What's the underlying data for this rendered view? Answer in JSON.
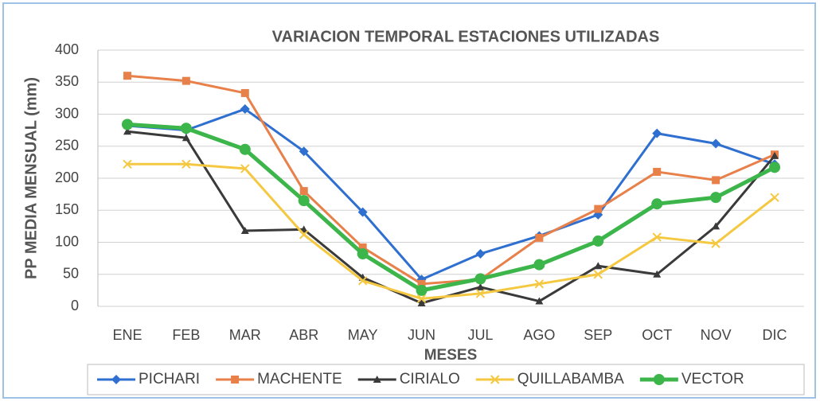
{
  "chart_data": {
    "type": "line",
    "title": "VARIACION TEMPORAL ESTACIONES UTILIZADAS",
    "y_label": "PP MEDIA MENSUAL (mm)",
    "x_label": "MESES",
    "categories": [
      "ENE",
      "FEB",
      "MAR",
      "ABR",
      "MAY",
      "JUN",
      "JUL",
      "AGO",
      "SEP",
      "OCT",
      "NOV",
      "DIC"
    ],
    "series": [
      {
        "name": "PICHARI",
        "color": "#2e6fd0",
        "marker": "diamond",
        "values": [
          282,
          275,
          308,
          242,
          147,
          42,
          82,
          110,
          143,
          270,
          254,
          222
        ]
      },
      {
        "name": "MACHENTE",
        "color": "#e8804a",
        "marker": "square",
        "values": [
          360,
          352,
          333,
          180,
          92,
          35,
          42,
          107,
          152,
          210,
          197,
          237
        ]
      },
      {
        "name": "CIRIALO",
        "color": "#3a3a3a",
        "marker": "triangle",
        "values": [
          273,
          263,
          118,
          120,
          45,
          5,
          30,
          8,
          63,
          50,
          125,
          235
        ]
      },
      {
        "name": "QUILLABAMBA",
        "color": "#f5c842",
        "marker": "x",
        "values": [
          222,
          222,
          215,
          112,
          40,
          12,
          20,
          35,
          50,
          108,
          98,
          170
        ]
      },
      {
        "name": "VECTOR",
        "color": "#3cb54a",
        "marker": "circle",
        "values": [
          284,
          278,
          245,
          165,
          82,
          25,
          43,
          65,
          102,
          160,
          170,
          217
        ]
      }
    ],
    "ylim": [
      0,
      400
    ],
    "yticks": [
      0,
      50,
      100,
      150,
      200,
      250,
      300,
      350,
      400
    ],
    "grid": true,
    "legend": "bottom"
  }
}
